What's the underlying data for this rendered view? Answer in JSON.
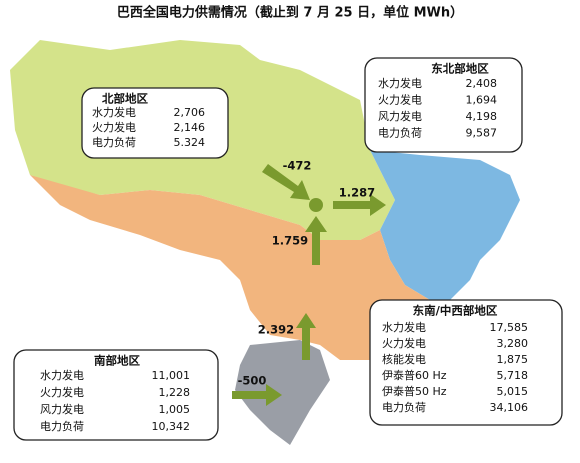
{
  "title": "巴西全国电力供需情况（截止到 7 月 25 日，单位 MWh）",
  "regions": [
    {
      "name": "北部地区",
      "rows": [
        [
          "水力发电",
          "2,706"
        ],
        [
          "火力发电",
          "2,146"
        ],
        [
          "电力负荷",
          "5.324"
        ]
      ]
    },
    {
      "name": "东北部地区",
      "rows": [
        [
          "水力发电",
          "2,408"
        ],
        [
          "火力发电",
          "1,694"
        ],
        [
          "风力发电",
          "4,198"
        ],
        [
          "电力负荷",
          "9,587"
        ]
      ]
    },
    {
      "name": "东南/中西部地区",
      "rows": [
        [
          "水力发电",
          "17,585"
        ],
        [
          "火力发电",
          "3,280"
        ],
        [
          "核能发电",
          "1,875"
        ],
        [
          "伊泰普60 Hz",
          "5,718"
        ],
        [
          "伊泰普50 Hz",
          "5,015"
        ],
        [
          "电力负荷",
          "34,106"
        ]
      ]
    },
    {
      "name": "南部地区",
      "rows": [
        [
          "水力发电",
          "11,001"
        ],
        [
          "火力发电",
          "1,228"
        ],
        [
          "风力发电",
          "1,005"
        ],
        [
          "电力负荷",
          "10,342"
        ]
      ]
    }
  ],
  "flows": [
    "-472",
    "1.287",
    "1.759",
    "2.392",
    "-500"
  ]
}
